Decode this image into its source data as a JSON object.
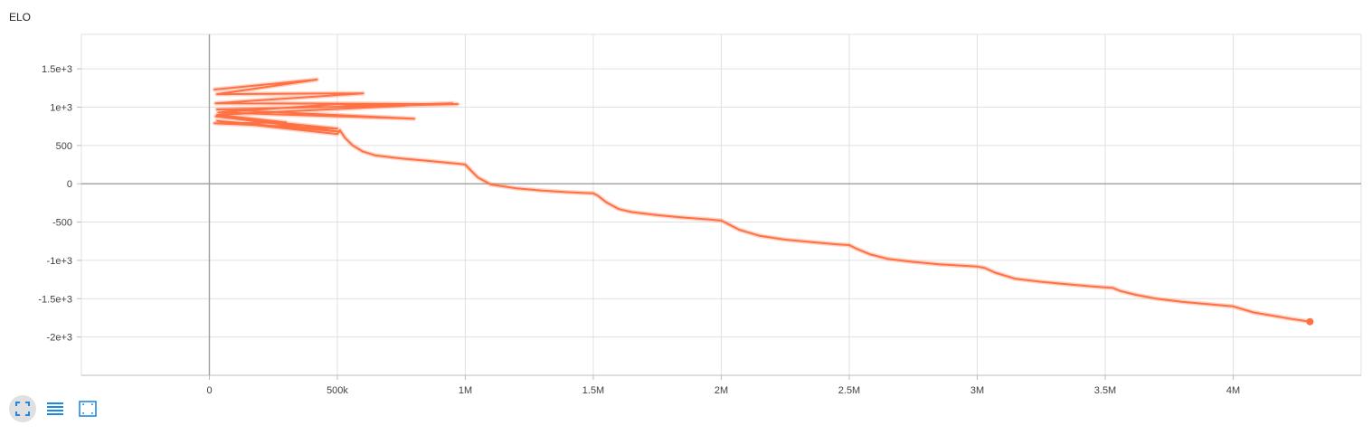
{
  "chart_data": {
    "type": "line",
    "title": "ELO",
    "xlabel": "",
    "ylabel": "",
    "xlim": [
      -500000,
      4500000
    ],
    "ylim": [
      -2500,
      1950
    ],
    "x_ticks": [
      0,
      500000,
      1000000,
      1500000,
      2000000,
      2500000,
      3000000,
      3500000,
      4000000
    ],
    "x_tick_labels": [
      "0",
      "500k",
      "1M",
      "1.5M",
      "2M",
      "2.5M",
      "3M",
      "3.5M",
      "4M"
    ],
    "y_ticks": [
      1500,
      1000,
      500,
      0,
      -500,
      -1000,
      -1500,
      -2000
    ],
    "y_tick_labels": [
      "1.5e+3",
      "1e+3",
      "500",
      "0",
      "-500",
      "-1e+3",
      "-1.5e+3",
      "-2e+3"
    ],
    "grid": true,
    "color": "#ff7043",
    "series": [
      {
        "values": [
          [
            20000,
            1230
          ],
          [
            420000,
            1360
          ],
          [
            30000,
            1170
          ],
          [
            600000,
            1180
          ],
          [
            25000,
            1050
          ],
          [
            970000,
            1040
          ],
          [
            30000,
            970
          ],
          [
            800000,
            850
          ],
          [
            35000,
            930
          ],
          [
            500000,
            1040
          ],
          [
            580000,
            1020
          ],
          [
            950000,
            1050
          ],
          [
            30000,
            900
          ],
          [
            300000,
            800
          ],
          [
            20000,
            790
          ],
          [
            500000,
            720
          ],
          [
            25000,
            880
          ],
          [
            510000,
            680
          ],
          [
            30000,
            820
          ],
          [
            500000,
            650
          ],
          [
            510000,
            700
          ],
          [
            530000,
            600
          ],
          [
            560000,
            500
          ],
          [
            600000,
            420
          ],
          [
            650000,
            370
          ],
          [
            750000,
            330
          ],
          [
            850000,
            300
          ],
          [
            980000,
            260
          ],
          [
            1000000,
            250
          ],
          [
            1020000,
            180
          ],
          [
            1050000,
            80
          ],
          [
            1100000,
            -10
          ],
          [
            1200000,
            -60
          ],
          [
            1300000,
            -90
          ],
          [
            1400000,
            -110
          ],
          [
            1500000,
            -125
          ],
          [
            1520000,
            -160
          ],
          [
            1550000,
            -240
          ],
          [
            1600000,
            -330
          ],
          [
            1650000,
            -370
          ],
          [
            1750000,
            -410
          ],
          [
            1850000,
            -440
          ],
          [
            1950000,
            -465
          ],
          [
            2000000,
            -480
          ],
          [
            2030000,
            -530
          ],
          [
            2070000,
            -600
          ],
          [
            2150000,
            -680
          ],
          [
            2250000,
            -730
          ],
          [
            2350000,
            -760
          ],
          [
            2450000,
            -790
          ],
          [
            2500000,
            -800
          ],
          [
            2530000,
            -850
          ],
          [
            2580000,
            -920
          ],
          [
            2650000,
            -980
          ],
          [
            2750000,
            -1020
          ],
          [
            2850000,
            -1050
          ],
          [
            2950000,
            -1070
          ],
          [
            3000000,
            -1080
          ],
          [
            3030000,
            -1100
          ],
          [
            3070000,
            -1160
          ],
          [
            3150000,
            -1240
          ],
          [
            3250000,
            -1280
          ],
          [
            3350000,
            -1310
          ],
          [
            3450000,
            -1340
          ],
          [
            3530000,
            -1360
          ],
          [
            3560000,
            -1400
          ],
          [
            3620000,
            -1450
          ],
          [
            3700000,
            -1500
          ],
          [
            3800000,
            -1540
          ],
          [
            3900000,
            -1570
          ],
          [
            4000000,
            -1600
          ],
          [
            4030000,
            -1630
          ],
          [
            4080000,
            -1680
          ],
          [
            4150000,
            -1720
          ],
          [
            4220000,
            -1760
          ],
          [
            4300000,
            -1800
          ]
        ],
        "last_point": [
          4300000,
          -1800
        ]
      }
    ]
  },
  "toolbar": {
    "fullscreen_icon": "expand-icon",
    "list_icon": "list-lines-icon",
    "fit_icon": "fit-domain-icon"
  }
}
